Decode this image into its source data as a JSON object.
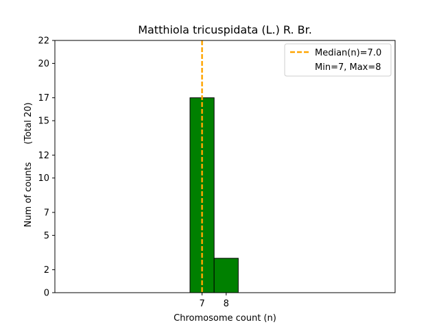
{
  "chart_data": {
    "type": "bar",
    "title": "Matthiola tricuspidata (L.) R. Br.",
    "xlabel": "Chromosome count (n)",
    "ylabel": "Num of counts",
    "ylabel_total": "(Total 20)",
    "categories": [
      "7",
      "8"
    ],
    "values": [
      17,
      3
    ],
    "bar_color": "#008000",
    "bar_edge_color": "#000000",
    "xlim": [
      0.9,
      15
    ],
    "ylim": [
      0,
      22
    ],
    "yticks": [
      0,
      2,
      5,
      7,
      10,
      12,
      15,
      17,
      20,
      22
    ],
    "xticks": [
      7,
      8
    ],
    "median_line": {
      "x": 7.0,
      "color": "#FFA500",
      "style": "dashed"
    },
    "baseline_extent": [
      0.9,
      12.6
    ],
    "legend": {
      "placement": "top-right",
      "entries": [
        "Median(n)=7.0",
        "Min=7, Max=8"
      ]
    },
    "grid": false
  }
}
